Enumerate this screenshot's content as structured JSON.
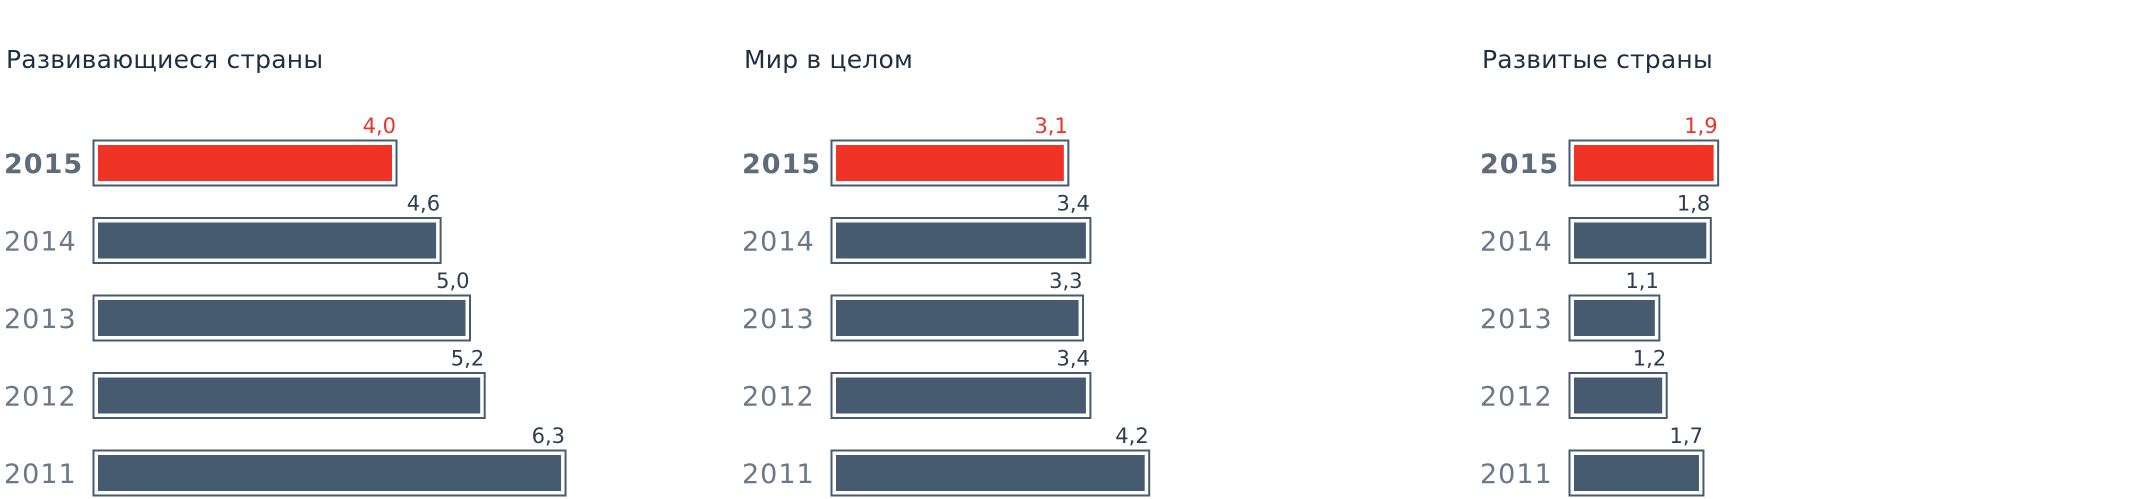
{
  "colors": {
    "bar": "#465b70",
    "bar_highlight": "#ef3426",
    "bar_frame": "#465b70",
    "year_text": "#6a7887",
    "value_text": "#2c3e50",
    "value_highlight": "#e8352a",
    "title_text": "#1d2f40"
  },
  "chart_data": [
    {
      "type": "bar",
      "orientation": "horizontal",
      "title": "Развивающиеся страны",
      "categories": [
        "2015",
        "2014",
        "2013",
        "2012",
        "2011"
      ],
      "values": [
        4.0,
        4.6,
        5.0,
        5.2,
        6.3
      ],
      "value_labels": [
        "4,0",
        "4,6",
        "5,0",
        "5,2",
        "6,3"
      ],
      "highlight": "2015"
    },
    {
      "type": "bar",
      "orientation": "horizontal",
      "title": "Мир в целом",
      "categories": [
        "2015",
        "2014",
        "2013",
        "2012",
        "2011"
      ],
      "values": [
        3.1,
        3.4,
        3.3,
        3.4,
        4.2
      ],
      "value_labels": [
        "3,1",
        "3,4",
        "3,3",
        "3,4",
        "4,2"
      ],
      "highlight": "2015"
    },
    {
      "type": "bar",
      "orientation": "horizontal",
      "title": "Развитые страны",
      "categories": [
        "2015",
        "2014",
        "2013",
        "2012",
        "2011"
      ],
      "values": [
        1.9,
        1.8,
        1.1,
        1.2,
        1.7
      ],
      "value_labels": [
        "1,9",
        "1,8",
        "1,1",
        "1,2",
        "1,7"
      ],
      "highlight": "2015"
    }
  ]
}
